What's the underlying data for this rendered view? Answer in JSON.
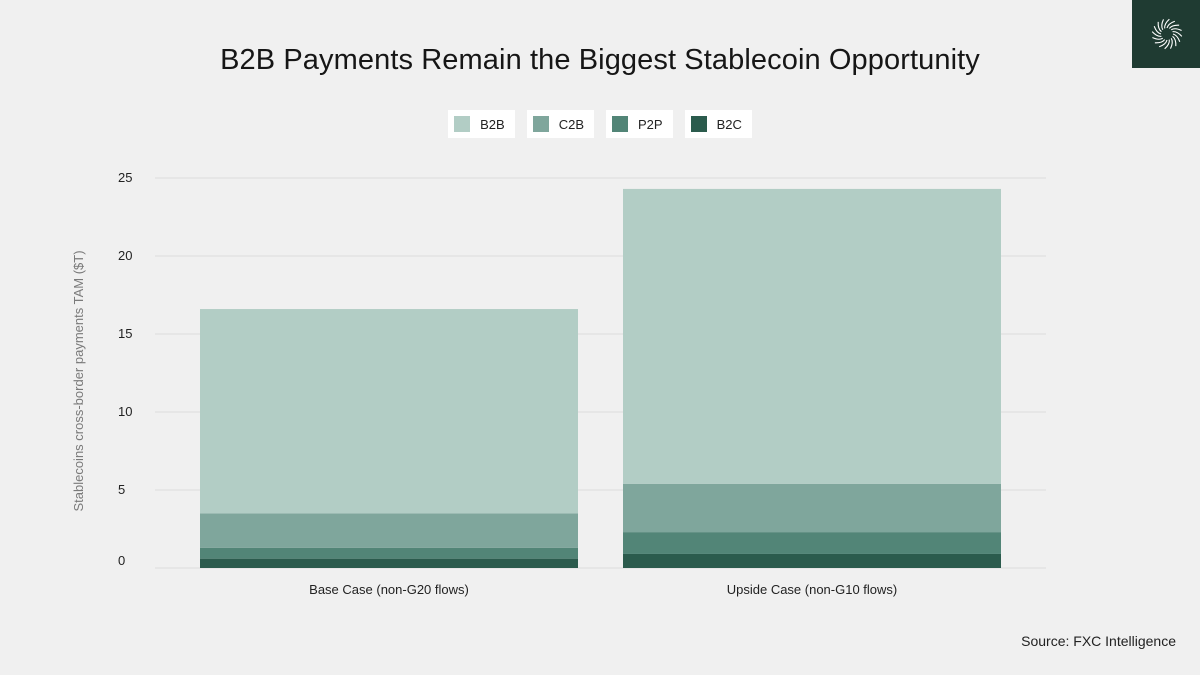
{
  "header": {
    "title": "B2B Payments Remain the Biggest Stablecoin Opportunity",
    "logo_icon": "fxc-intelligence-logo-icon"
  },
  "footer": {
    "source": "Source: FXC Intelligence"
  },
  "colors": {
    "B2B": "#b2cdc5",
    "C2B": "#7fa69c",
    "P2P": "#528577",
    "B2C": "#2b5b4d",
    "grid": "#dddddd",
    "logo_bg": "#1f3b32"
  },
  "chart_data": {
    "type": "bar",
    "stacked": true,
    "categories": [
      "Base Case (non-G20 flows)",
      "Upside Case (non-G10 flows)"
    ],
    "series": [
      {
        "name": "B2C",
        "values": [
          0.6,
          0.9
        ]
      },
      {
        "name": "P2P",
        "values": [
          0.7,
          1.4
        ]
      },
      {
        "name": "C2B",
        "values": [
          2.2,
          3.1
        ]
      },
      {
        "name": "B2B",
        "values": [
          13.1,
          18.9
        ]
      }
    ],
    "legend_order": [
      "B2B",
      "C2B",
      "P2P",
      "B2C"
    ],
    "legend_position": "top-center",
    "title": "B2B Payments Remain the Biggest Stablecoin Opportunity",
    "xlabel": "",
    "ylabel": "Stablecoins cross-border payments TAM ($T)",
    "ylim": [
      0,
      25
    ],
    "yticks": [
      0,
      5,
      10,
      15,
      20,
      25
    ],
    "grid": true
  }
}
